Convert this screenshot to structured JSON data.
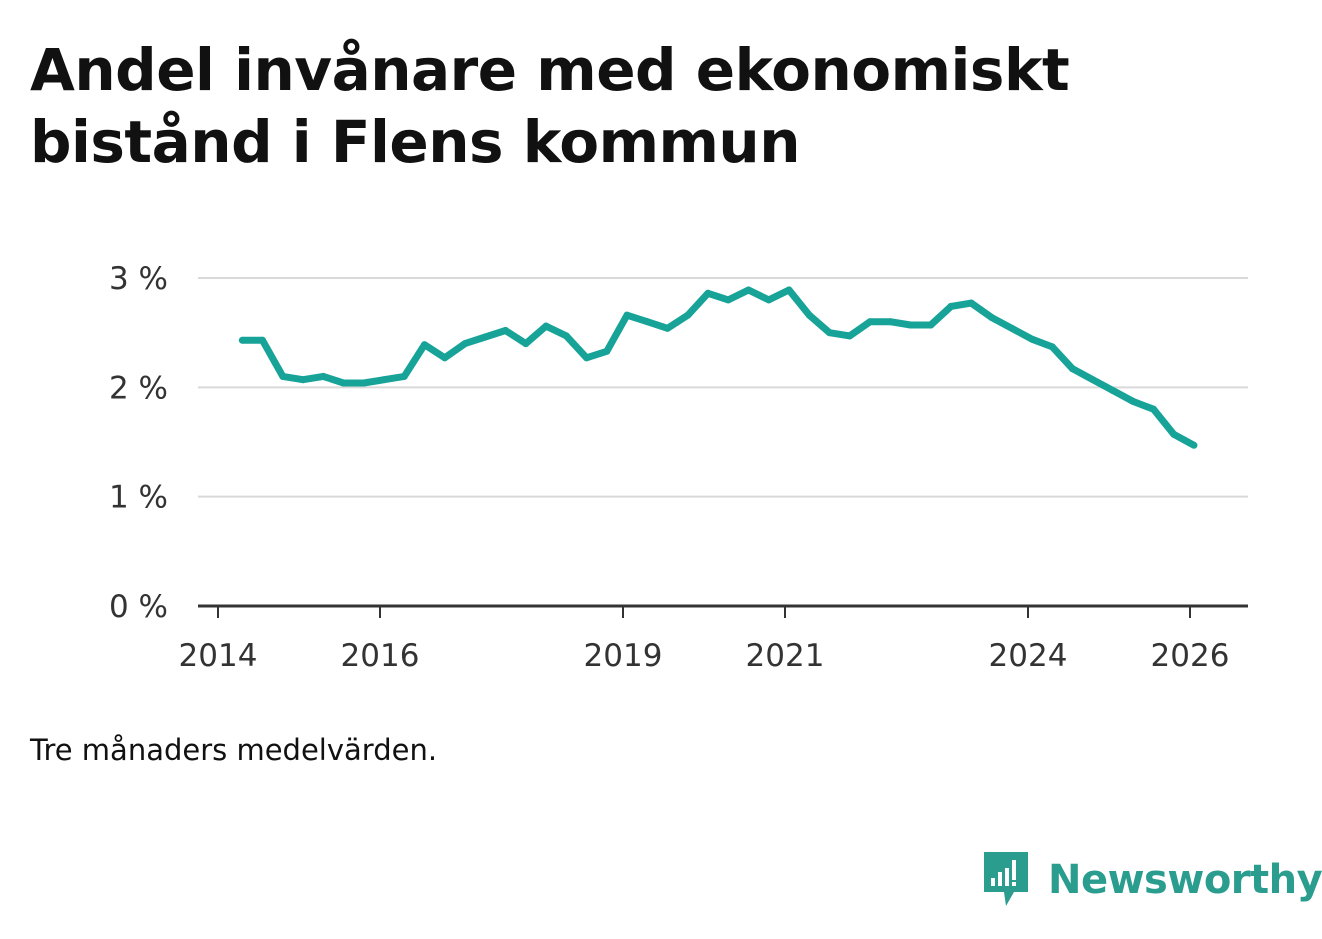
{
  "title_lines": [
    "Andel invånare med ekonomiskt",
    "bistånd i Flens kommun"
  ],
  "note": "Tre månaders medelvärden.",
  "brand": {
    "name": "Newsworthy"
  },
  "colors": {
    "line": "#17a398",
    "grid": "#d9d9d9",
    "axis": "#333333",
    "brand": "#2a9d8f"
  },
  "chart_data": {
    "type": "line",
    "title": "Andel invånare med ekonomiskt bistånd i Flens kommun",
    "xlabel": "",
    "ylabel": "",
    "ylim": [
      0,
      3
    ],
    "xlim": [
      2014.0,
      2026.35
    ],
    "yticks": [
      0,
      1,
      2,
      3
    ],
    "ytick_labels": [
      "0 %",
      "1 %",
      "2 %",
      "3 %"
    ],
    "xticks": [
      2014,
      2016,
      2019,
      2021,
      2024,
      2026
    ],
    "xtick_labels": [
      "2014",
      "2016",
      "2019",
      "2021",
      "2024",
      "2026"
    ],
    "grid": true,
    "series": [
      {
        "name": "Andel invånare med ekonomiskt bistånd",
        "x": [
          2014.3,
          2014.55,
          2014.8,
          2015.05,
          2015.3,
          2015.55,
          2015.8,
          2016.05,
          2016.3,
          2016.55,
          2016.8,
          2017.05,
          2017.3,
          2017.55,
          2017.8,
          2018.05,
          2018.3,
          2018.55,
          2018.8,
          2019.05,
          2019.3,
          2019.55,
          2019.8,
          2020.05,
          2020.3,
          2020.55,
          2020.8,
          2021.05,
          2021.3,
          2021.55,
          2021.8,
          2022.05,
          2022.3,
          2022.55,
          2022.8,
          2023.05,
          2023.3,
          2023.55,
          2023.8,
          2024.05,
          2024.3,
          2024.55,
          2024.8,
          2025.05,
          2025.3,
          2025.55,
          2025.8,
          2026.05
        ],
        "values": [
          2.43,
          2.43,
          2.1,
          2.07,
          2.1,
          2.04,
          2.04,
          2.07,
          2.1,
          2.39,
          2.27,
          2.4,
          2.46,
          2.52,
          2.4,
          2.56,
          2.47,
          2.27,
          2.33,
          2.66,
          2.6,
          2.54,
          2.66,
          2.86,
          2.8,
          2.89,
          2.8,
          2.89,
          2.66,
          2.5,
          2.47,
          2.6,
          2.6,
          2.57,
          2.57,
          2.74,
          2.77,
          2.64,
          2.54,
          2.44,
          2.37,
          2.17,
          2.07,
          1.97,
          1.87,
          1.8,
          1.57,
          1.47
        ]
      }
    ]
  }
}
